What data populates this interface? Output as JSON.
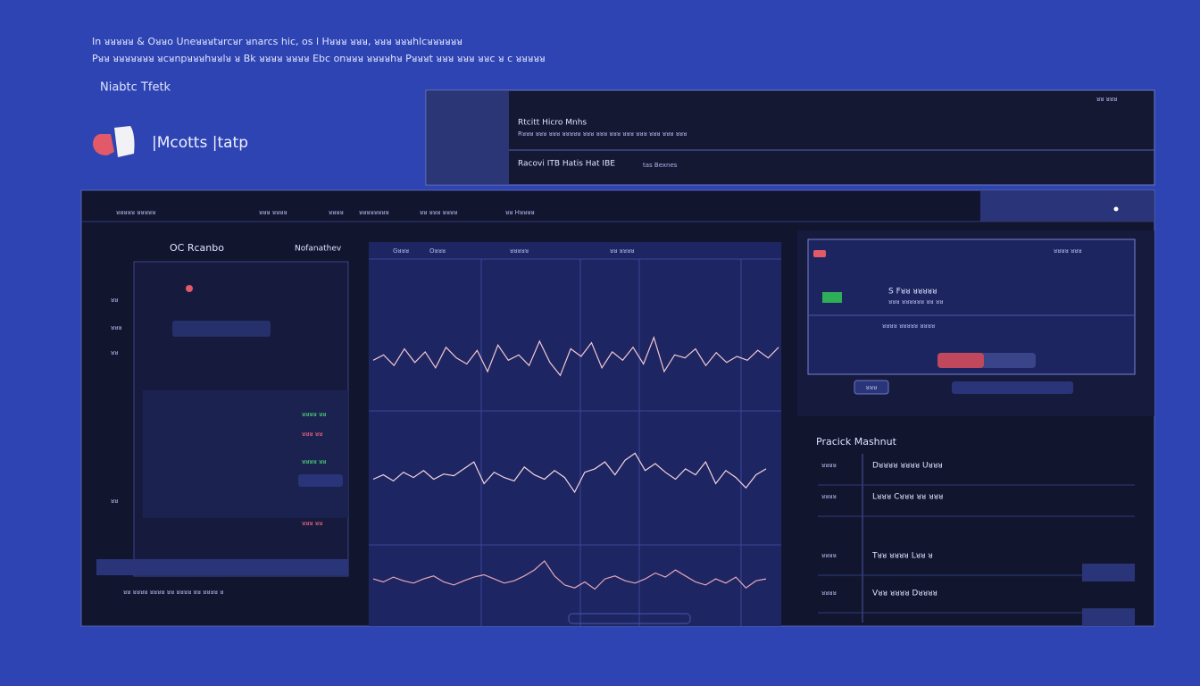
{
  "header": {
    "line1": "In ᴚᴚᴚᴚᴚ & Oᴚᴚo Uneᴚᴚᴚtᴚrcᴚr ᴚnarcs hic, os l Hᴚᴚᴚ ᴚᴚᴚ, ᴚᴚᴚ ᴚᴚᴚhlcᴚᴚᴚᴚᴚᴚ",
    "line2": "Pᴚᴚ ᴚᴚᴚᴚᴚᴚᴚ ᴚcᴚnpᴚᴚᴚhᴚᴚlᴚ ᴚ Bk ᴚᴚᴚᴚ ᴚᴚᴚᴚ Ebc onᴚᴚᴚ ᴚᴚᴚᴚhᴚ Pᴚᴚᴚt ᴚᴚᴚ ᴚᴚᴚ ᴚᴚc ᴚ c ᴚᴚᴚᴚᴚ",
    "subtitle": "Niabtc Tfetk",
    "brand": "|Mcotts |tatp"
  },
  "top_panel": {
    "corner": "ᴚᴚ ᴚᴚᴚ",
    "title": "Rtcitt Hicro Mnhs",
    "detail": "Rᴚᴚᴚ ᴚᴚᴚ ᴚᴚᴚ ᴚᴚᴚᴚᴚ ᴚᴚᴚ ᴚᴚᴚ ᴚᴚᴚ ᴚᴚᴚ ᴚᴚᴚ ᴚᴚᴚ ᴚᴚᴚ ᴚᴚᴚ",
    "row": "Racovi ITB Hatis Hat IBE",
    "row_tail": "tas Bexnes"
  },
  "toolbar": [
    "ᴚᴚᴚᴚᴚ ᴚᴚᴚᴚᴚ",
    "ᴚᴚᴚ ᴚᴚᴚᴚ",
    "ᴚᴚᴚᴚ",
    "ᴚᴚᴚᴚᴚᴚᴚᴚ",
    "ᴚᴚ ᴚᴚᴚ ᴚᴚᴚᴚ",
    "ᴚᴚ Hᴚᴚᴚᴚ"
  ],
  "left_panel": {
    "tab1": "OC Rcanbo",
    "tab2": "Nofanathev",
    "labels": [
      "ᴚᴚ",
      "ᴚᴚᴚ",
      "ᴚᴚ",
      "ᴚᴚ"
    ],
    "values": [
      "ᴚᴚᴚᴚ ᴚᴚ",
      "ᴚᴚᴚ ᴚᴚ",
      "ᴚᴚᴚᴚ ᴚᴚ",
      "ᴚᴚᴚ ᴚᴚ"
    ],
    "footer": "ᴚᴚ ᴚᴚᴚᴚ ᴚᴚᴚᴚ ᴚᴚ ᴚᴚᴚᴚ ᴚᴚ ᴚᴚᴚᴚ ᴚ"
  },
  "chart_header": [
    "Gᴚᴚᴚ",
    "Oᴚᴚᴚ",
    "ᴚᴚᴚᴚᴚ",
    "ᴚᴚ ᴚᴚᴚᴚ"
  ],
  "series": [
    {
      "name": "upper",
      "color": "#f2c8d0",
      "values": [
        55,
        62,
        48,
        70,
        52,
        66,
        45,
        72,
        58,
        50,
        68,
        40,
        75,
        55,
        62,
        48,
        80,
        52,
        35,
        70,
        60,
        78,
        45,
        66,
        55,
        72,
        50,
        85,
        40,
        62,
        58,
        70,
        48,
        65,
        52,
        60,
        55,
        68,
        58,
        72
      ]
    },
    {
      "name": "middle",
      "color": "#f4d6de",
      "values": [
        50,
        55,
        48,
        58,
        52,
        60,
        50,
        56,
        54,
        62,
        70,
        45,
        58,
        52,
        48,
        64,
        55,
        50,
        60,
        52,
        35,
        58,
        62,
        70,
        55,
        72,
        80,
        60,
        68,
        58,
        50,
        62,
        55,
        70,
        45,
        60,
        52,
        40,
        55,
        62
      ]
    },
    {
      "name": "lower",
      "color": "#e7a8b8",
      "values": [
        55,
        50,
        58,
        52,
        48,
        55,
        60,
        50,
        45,
        52,
        58,
        62,
        55,
        48,
        52,
        60,
        70,
        85,
        60,
        45,
        40,
        50,
        38,
        55,
        60,
        52,
        48,
        55,
        65,
        58,
        70,
        60,
        50,
        45,
        55,
        48,
        58,
        40,
        52,
        55
      ]
    }
  ],
  "card": {
    "head": "ᴚᴚᴚᴚ ᴚᴚᴚ",
    "title": "S Fᴚᴚ ᴚᴚᴚᴚᴚ",
    "sub": "ᴚᴚᴚ ᴚᴚᴚᴚᴚᴚ ᴚᴚ ᴚᴚ",
    "line": "ᴚᴚᴚᴚ ᴚᴚᴚᴚᴚ ᴚᴚᴚᴚ",
    "button": "ᴚᴚᴚ"
  },
  "table": {
    "title": "Pracick Mashnut",
    "rows": [
      [
        "ᴚᴚᴚᴚ",
        "Dᴚᴚᴚᴚ ᴚᴚᴚᴚ Uᴚᴚᴚ"
      ],
      [
        "ᴚᴚᴚᴚ",
        "Lᴚᴚᴚ Cᴚᴚᴚ ᴚᴚ ᴚᴚᴚ"
      ],
      [
        "ᴚᴚᴚᴚ",
        "Tᴚᴚ ᴚᴚᴚᴚ Lᴚᴚ ᴚ"
      ],
      [
        "ᴚᴚᴚᴚ",
        "Vᴚᴚ ᴚᴚᴚᴚ Dᴚᴚᴚᴚ"
      ]
    ]
  }
}
